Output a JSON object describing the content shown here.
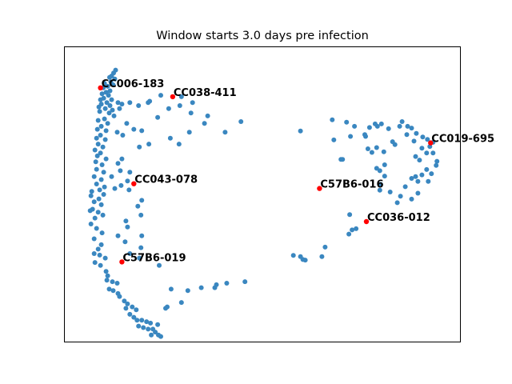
{
  "chart_data": {
    "type": "scatter",
    "title": "Window starts 3.0 days pre infection",
    "xlabel": "",
    "ylabel": "",
    "axes_ticks": false,
    "grid": false,
    "colors": {
      "points": "#3a87c0",
      "highlight": "#ff0000"
    },
    "xlim": [
      0,
      100
    ],
    "ylim": [
      0,
      100
    ],
    "points": [
      [
        13.0,
        92.0
      ],
      [
        12.5,
        91.0
      ],
      [
        12.0,
        90.0
      ],
      [
        11.5,
        89.5
      ],
      [
        12.8,
        89.0
      ],
      [
        11.8,
        88.0
      ],
      [
        12.4,
        87.0
      ],
      [
        11.0,
        86.5
      ],
      [
        10.2,
        87.5
      ],
      [
        9.9,
        86.0
      ],
      [
        11.6,
        85.0
      ],
      [
        10.6,
        84.5
      ],
      [
        9.6,
        84.0
      ],
      [
        11.2,
        83.5
      ],
      [
        10.0,
        82.5
      ],
      [
        9.2,
        82.0
      ],
      [
        12.0,
        82.0
      ],
      [
        10.8,
        81.0
      ],
      [
        9.4,
        80.5
      ],
      [
        11.6,
        80.0
      ],
      [
        8.8,
        79.5
      ],
      [
        10.4,
        79.0
      ],
      [
        12.2,
        78.5
      ],
      [
        9.0,
        78.0
      ],
      [
        11.4,
        77.5
      ],
      [
        13.6,
        81.0
      ],
      [
        14.0,
        79.0
      ],
      [
        12.6,
        76.5
      ],
      [
        10.2,
        75.5
      ],
      [
        8.6,
        75.0
      ],
      [
        11.0,
        74.0
      ],
      [
        9.4,
        73.0
      ],
      [
        8.4,
        72.0
      ],
      [
        10.6,
        71.5
      ],
      [
        9.2,
        70.0
      ],
      [
        8.2,
        69.0
      ],
      [
        10.4,
        68.5
      ],
      [
        8.6,
        67.0
      ],
      [
        9.8,
        66.0
      ],
      [
        7.8,
        65.0
      ],
      [
        9.2,
        64.0
      ],
      [
        8.4,
        63.0
      ],
      [
        10.6,
        62.0
      ],
      [
        8.0,
        61.0
      ],
      [
        9.6,
        60.0
      ],
      [
        8.2,
        58.5
      ],
      [
        10.0,
        57.5
      ],
      [
        7.6,
        56.0
      ],
      [
        9.4,
        55.0
      ],
      [
        8.2,
        53.5
      ],
      [
        10.2,
        52.5
      ],
      [
        7.0,
        51.0
      ],
      [
        9.0,
        51.5
      ],
      [
        6.8,
        49.5
      ],
      [
        8.8,
        48.5
      ],
      [
        10.0,
        50.0
      ],
      [
        7.6,
        47.5
      ],
      [
        9.4,
        46.5
      ],
      [
        7.2,
        45.0
      ],
      [
        8.6,
        44.0
      ],
      [
        6.6,
        44.5
      ],
      [
        9.8,
        43.0
      ],
      [
        7.8,
        42.0
      ],
      [
        6.8,
        40.0
      ],
      [
        8.2,
        38.5
      ],
      [
        9.6,
        37.0
      ],
      [
        7.6,
        35.0
      ],
      [
        9.4,
        33.0
      ],
      [
        8.6,
        31.5
      ],
      [
        7.6,
        30.0
      ],
      [
        9.0,
        29.5
      ],
      [
        10.4,
        28.5
      ],
      [
        7.8,
        27.0
      ],
      [
        9.2,
        26.0
      ],
      [
        10.6,
        24.0
      ],
      [
        11.0,
        22.5
      ],
      [
        10.8,
        21.0
      ],
      [
        12.2,
        20.5
      ],
      [
        13.4,
        20.0
      ],
      [
        11.4,
        18.0
      ],
      [
        12.4,
        17.5
      ],
      [
        13.6,
        16.5
      ],
      [
        14.0,
        15.5
      ],
      [
        15.2,
        14.0
      ],
      [
        16.0,
        13.0
      ],
      [
        17.2,
        12.0
      ],
      [
        15.6,
        11.5
      ],
      [
        18.2,
        11.0
      ],
      [
        16.6,
        9.5
      ],
      [
        17.6,
        8.5
      ],
      [
        18.4,
        7.5
      ],
      [
        19.6,
        7.5
      ],
      [
        20.8,
        7.0
      ],
      [
        21.8,
        6.5
      ],
      [
        18.8,
        5.5
      ],
      [
        20.0,
        5.0
      ],
      [
        21.2,
        4.5
      ],
      [
        22.4,
        4.5
      ],
      [
        23.0,
        3.5
      ],
      [
        22.0,
        2.5
      ],
      [
        23.8,
        2.5
      ],
      [
        24.4,
        2.0
      ],
      [
        23.6,
        6.0
      ],
      [
        25.6,
        11.5
      ],
      [
        26.0,
        12.0
      ],
      [
        29.6,
        13.5
      ],
      [
        31.2,
        17.5
      ],
      [
        34.6,
        18.5
      ],
      [
        38.4,
        19.5
      ],
      [
        41.0,
        20.0
      ],
      [
        45.6,
        20.5
      ],
      [
        38.0,
        18.5
      ],
      [
        27.0,
        18.0
      ],
      [
        24.0,
        26.0
      ],
      [
        19.0,
        28.5
      ],
      [
        16.6,
        30.0
      ],
      [
        19.4,
        32.0
      ],
      [
        15.4,
        34.0
      ],
      [
        13.6,
        36.0
      ],
      [
        19.6,
        36.0
      ],
      [
        16.0,
        39.0
      ],
      [
        15.6,
        41.0
      ],
      [
        19.4,
        43.0
      ],
      [
        18.6,
        46.0
      ],
      [
        19.6,
        48.0
      ],
      [
        16.4,
        51.5
      ],
      [
        12.8,
        52.0
      ],
      [
        14.4,
        53.0
      ],
      [
        16.0,
        54.5
      ],
      [
        12.0,
        56.0
      ],
      [
        14.2,
        58.0
      ],
      [
        13.6,
        60.5
      ],
      [
        14.6,
        62.0
      ],
      [
        16.6,
        57.5
      ],
      [
        19.0,
        66.0
      ],
      [
        21.4,
        67.0
      ],
      [
        26.8,
        69.0
      ],
      [
        29.0,
        67.0
      ],
      [
        31.6,
        71.0
      ],
      [
        35.4,
        74.0
      ],
      [
        40.6,
        71.0
      ],
      [
        32.0,
        77.5
      ],
      [
        23.6,
        76.0
      ],
      [
        21.6,
        81.5
      ],
      [
        18.8,
        80.0
      ],
      [
        16.6,
        81.0
      ],
      [
        14.6,
        80.5
      ],
      [
        15.8,
        74.0
      ],
      [
        17.6,
        72.0
      ],
      [
        14.8,
        70.0
      ],
      [
        13.4,
        71.0
      ],
      [
        19.6,
        71.5
      ],
      [
        21.2,
        81.0
      ],
      [
        26.4,
        79.0
      ],
      [
        29.6,
        83.0
      ],
      [
        24.4,
        83.5
      ],
      [
        29.2,
        80.0
      ],
      [
        32.4,
        81.0
      ],
      [
        36.2,
        76.5
      ],
      [
        44.6,
        74.6
      ],
      [
        59.6,
        71.4
      ],
      [
        67.6,
        75.2
      ],
      [
        71.2,
        74.4
      ],
      [
        68.0,
        68.4
      ],
      [
        72.2,
        69.6
      ],
      [
        75.8,
        70.2
      ],
      [
        78.4,
        73.8
      ],
      [
        77.0,
        72.6
      ],
      [
        80.0,
        73.8
      ],
      [
        81.8,
        72.2
      ],
      [
        84.6,
        73.0
      ],
      [
        85.2,
        74.6
      ],
      [
        86.6,
        73.0
      ],
      [
        87.6,
        72.4
      ],
      [
        88.8,
        70.6
      ],
      [
        90.4,
        69.4
      ],
      [
        88.2,
        68.0
      ],
      [
        91.6,
        68.6
      ],
      [
        93.0,
        67.6
      ],
      [
        92.2,
        66.2
      ],
      [
        90.2,
        65.6
      ],
      [
        91.4,
        64.0
      ],
      [
        93.0,
        64.0
      ],
      [
        88.6,
        62.8
      ],
      [
        89.6,
        61.6
      ],
      [
        94.0,
        61.2
      ],
      [
        93.8,
        59.8
      ],
      [
        91.4,
        58.4
      ],
      [
        92.6,
        57.0
      ],
      [
        88.6,
        56.0
      ],
      [
        90.2,
        56.6
      ],
      [
        87.6,
        55.4
      ],
      [
        89.2,
        54.4
      ],
      [
        91.8,
        54.4
      ],
      [
        86.0,
        52.6
      ],
      [
        89.2,
        50.4
      ],
      [
        87.6,
        48.4
      ],
      [
        84.0,
        47.2
      ],
      [
        84.8,
        49.4
      ],
      [
        82.2,
        50.8
      ],
      [
        79.6,
        51.4
      ],
      [
        79.8,
        53.4
      ],
      [
        80.8,
        56.2
      ],
      [
        79.6,
        58.0
      ],
      [
        78.8,
        58.8
      ],
      [
        77.6,
        64.2
      ],
      [
        76.6,
        65.4
      ],
      [
        78.8,
        65.8
      ],
      [
        76.0,
        69.6
      ],
      [
        69.8,
        61.8
      ],
      [
        70.2,
        61.8
      ],
      [
        80.8,
        60.0
      ],
      [
        80.6,
        64.4
      ],
      [
        82.8,
        67.8
      ],
      [
        79.0,
        73.0
      ],
      [
        83.4,
        66.8
      ],
      [
        86.4,
        70.2
      ],
      [
        72.0,
        43.2
      ],
      [
        72.6,
        38.0
      ],
      [
        71.8,
        36.6
      ],
      [
        73.6,
        38.4
      ],
      [
        65.8,
        32.2
      ],
      [
        65.0,
        29.0
      ],
      [
        59.6,
        29.0
      ],
      [
        60.8,
        27.8
      ],
      [
        60.2,
        28.0
      ],
      [
        57.8,
        29.4
      ],
      [
        73.2,
        73.0
      ]
    ],
    "highlighted": [
      {
        "label": "CC006-183",
        "x": 9.2,
        "y": 86.0
      },
      {
        "label": "CC038-411",
        "x": 27.4,
        "y": 83.0
      },
      {
        "label": "CC019-695",
        "x": 92.4,
        "y": 67.4
      },
      {
        "label": "CC043-078",
        "x": 17.6,
        "y": 53.6
      },
      {
        "label": "C57B6-016",
        "x": 64.4,
        "y": 52.0
      },
      {
        "label": "CC036-012",
        "x": 76.2,
        "y": 40.8
      },
      {
        "label": "C57B6-019",
        "x": 14.6,
        "y": 27.2
      }
    ]
  }
}
